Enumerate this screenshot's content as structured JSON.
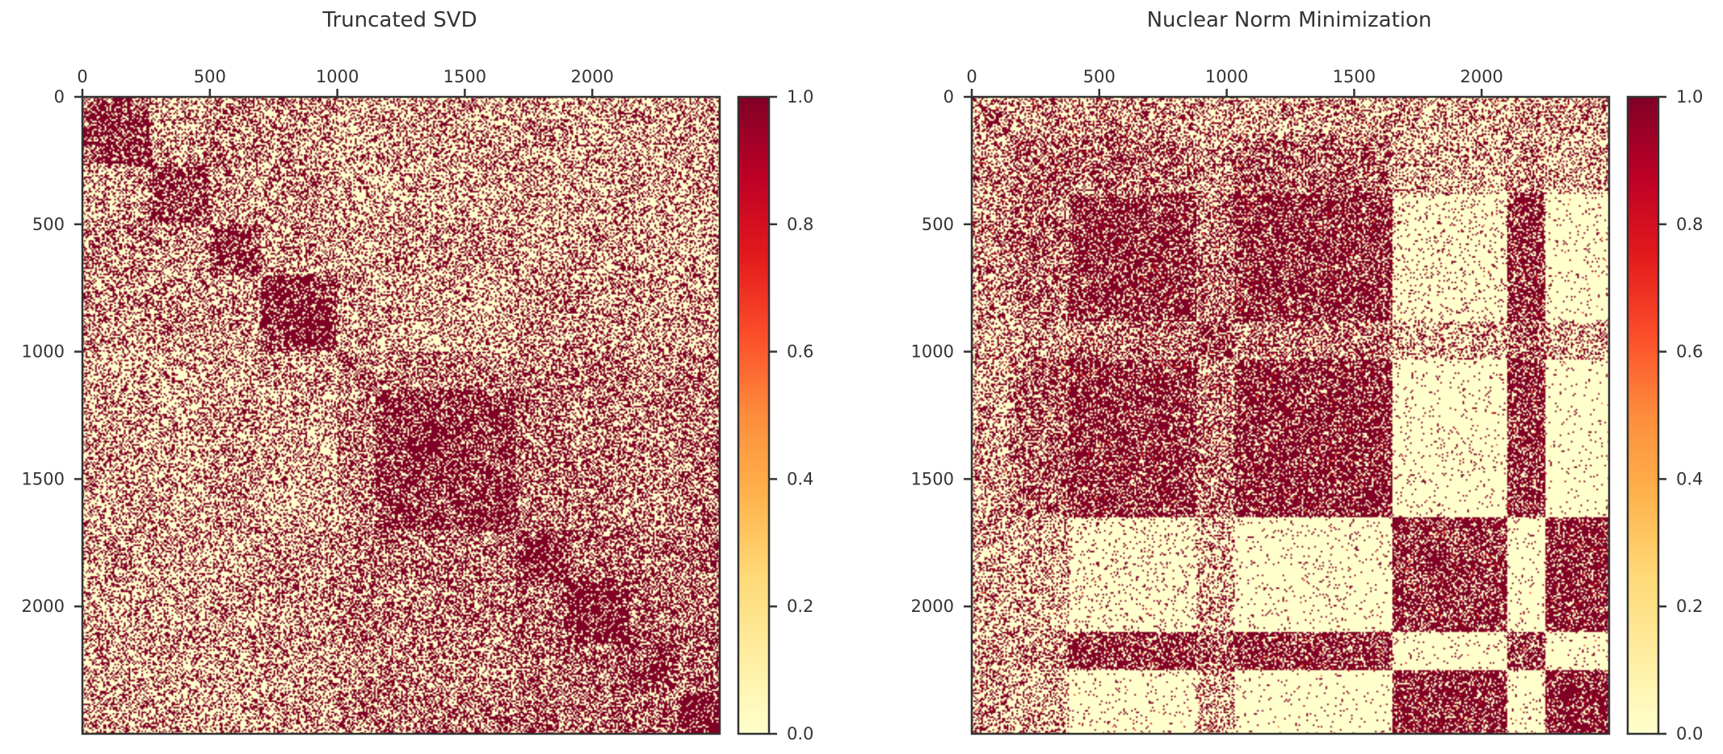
{
  "chart_data": [
    {
      "type": "heatmap",
      "title": "Truncated SVD",
      "xlabel": "",
      "ylabel": "",
      "xlim": [
        0,
        2500
      ],
      "ylim": [
        0,
        2500
      ],
      "x_ticks": [
        0,
        500,
        1000,
        1500,
        2000
      ],
      "y_ticks": [
        0,
        500,
        1000,
        1500,
        2000
      ],
      "x_tick_position": "top",
      "colorbar": {
        "ticks": [
          "0.0",
          "0.2",
          "0.4",
          "0.6",
          "0.8",
          "1.0"
        ],
        "range": [
          0,
          1
        ],
        "colormap": "YlOrRd"
      },
      "block_structure": {
        "description_values": "binary similarity matrix, block boundaries in matrix indices",
        "boundaries": [
          0,
          260,
          500,
          700,
          1000,
          1150,
          1700,
          1900,
          2150,
          2330,
          2500
        ],
        "blocks": [
          [
            0.8,
            0.35,
            0.45,
            0.35,
            0.3,
            0.35,
            0.35,
            0.35,
            0.3,
            0.35
          ],
          [
            0.35,
            0.75,
            0.35,
            0.4,
            0.25,
            0.3,
            0.35,
            0.3,
            0.35,
            0.3
          ],
          [
            0.45,
            0.35,
            0.9,
            0.35,
            0.3,
            0.4,
            0.3,
            0.35,
            0.3,
            0.3
          ],
          [
            0.35,
            0.4,
            0.35,
            0.85,
            0.35,
            0.3,
            0.45,
            0.4,
            0.35,
            0.35
          ],
          [
            0.3,
            0.25,
            0.3,
            0.35,
            0.6,
            0.5,
            0.5,
            0.55,
            0.4,
            0.45
          ],
          [
            0.35,
            0.3,
            0.4,
            0.3,
            0.5,
            0.8,
            0.55,
            0.5,
            0.45,
            0.5
          ],
          [
            0.35,
            0.35,
            0.3,
            0.45,
            0.5,
            0.55,
            0.97,
            0.6,
            0.55,
            0.6
          ],
          [
            0.35,
            0.3,
            0.35,
            0.4,
            0.55,
            0.5,
            0.6,
            0.85,
            0.6,
            0.55
          ],
          [
            0.3,
            0.35,
            0.3,
            0.35,
            0.4,
            0.45,
            0.55,
            0.6,
            0.8,
            0.6
          ],
          [
            0.35,
            0.3,
            0.3,
            0.35,
            0.45,
            0.5,
            0.6,
            0.55,
            0.6,
            0.85
          ]
        ]
      }
    },
    {
      "type": "heatmap",
      "title": "Nuclear Norm Minimization",
      "xlabel": "",
      "ylabel": "",
      "xlim": [
        0,
        2500
      ],
      "ylim": [
        0,
        2500
      ],
      "x_ticks": [
        0,
        500,
        1000,
        1500,
        2000
      ],
      "y_ticks": [
        0,
        500,
        1000,
        1500,
        2000
      ],
      "x_tick_position": "top",
      "colorbar": {
        "ticks": [
          "0.0",
          "0.2",
          "0.4",
          "0.6",
          "0.8",
          "1.0"
        ],
        "range": [
          0,
          1
        ],
        "colormap": "YlOrRd"
      },
      "block_structure": {
        "description_values": "similarity matrix, block boundaries in matrix indices",
        "boundaries": [
          0,
          150,
          380,
          880,
          1030,
          1650,
          2100,
          2250,
          2500
        ],
        "blocks": [
          [
            0.45,
            0.35,
            0.4,
            0.35,
            0.35,
            0.35,
            0.3,
            0.35
          ],
          [
            0.35,
            0.55,
            0.55,
            0.4,
            0.6,
            0.25,
            0.4,
            0.25
          ],
          [
            0.4,
            0.55,
            0.95,
            0.55,
            0.95,
            0.1,
            0.95,
            0.05
          ],
          [
            0.35,
            0.4,
            0.55,
            0.7,
            0.55,
            0.3,
            0.55,
            0.3
          ],
          [
            0.35,
            0.6,
            0.95,
            0.55,
            0.97,
            0.05,
            0.95,
            0.02
          ],
          [
            0.35,
            0.25,
            0.1,
            0.3,
            0.05,
            0.8,
            0.05,
            0.85
          ],
          [
            0.3,
            0.4,
            0.95,
            0.55,
            0.95,
            0.05,
            0.9,
            0.05
          ],
          [
            0.35,
            0.25,
            0.05,
            0.3,
            0.02,
            0.85,
            0.05,
            0.85
          ]
        ]
      }
    }
  ]
}
